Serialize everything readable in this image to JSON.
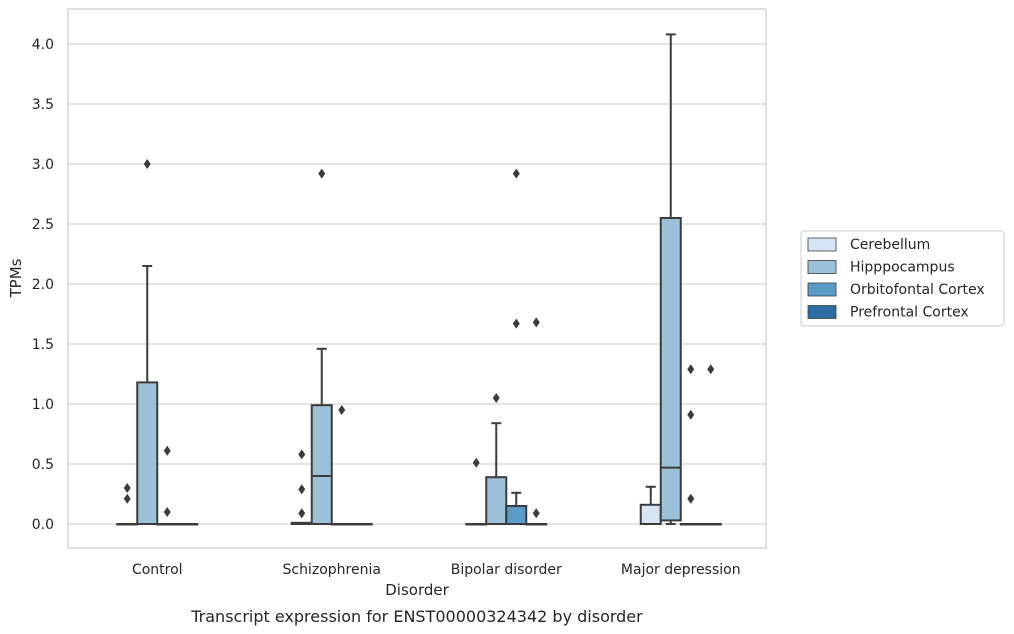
{
  "chart_data": {
    "type": "box",
    "caption": "Transcript expression for ENST00000324342 by disorder",
    "xlabel": "Disorder",
    "ylabel": "TPMs",
    "ylim": [
      -0.2,
      4.28
    ],
    "yticks": [
      "0.0",
      "0.5",
      "1.0",
      "1.5",
      "2.0",
      "2.5",
      "3.0",
      "3.5",
      "4.0"
    ],
    "grid": "horizontal",
    "legend_position": "right",
    "categories": [
      "Control",
      "Schizophrenia",
      "Bipolar disorder",
      "Major depression"
    ],
    "series": [
      {
        "name": "Cerebellum",
        "color": "#d6e5f4",
        "boxes": [
          {
            "q1": 0,
            "median": 0,
            "q3": 0,
            "whisker_low": 0,
            "whisker_high": 0,
            "outliers": [
              0.21,
              0.3
            ]
          },
          {
            "q1": 0,
            "median": 0,
            "q3": 0.01,
            "whisker_low": 0,
            "whisker_high": 0.01,
            "outliers": [
              0.09,
              0.29,
              0.58
            ]
          },
          {
            "q1": 0,
            "median": 0,
            "q3": 0,
            "whisker_low": 0,
            "whisker_high": 0,
            "outliers": [
              0.51
            ]
          },
          {
            "q1": 0,
            "median": 0,
            "q3": 0.16,
            "whisker_low": 0,
            "whisker_high": 0.31,
            "outliers": []
          }
        ]
      },
      {
        "name": "Hipppocampus",
        "color": "#9bc2d9",
        "boxes": [
          {
            "q1": 0,
            "median": 0,
            "q3": 1.18,
            "whisker_low": 0,
            "whisker_high": 2.15,
            "outliers": [
              3.0
            ]
          },
          {
            "q1": 0,
            "median": 0.4,
            "q3": 0.99,
            "whisker_low": 0,
            "whisker_high": 1.46,
            "outliers": [
              2.92
            ]
          },
          {
            "q1": 0,
            "median": 0,
            "q3": 0.39,
            "whisker_low": 0,
            "whisker_high": 0.84,
            "outliers": [
              1.05
            ]
          },
          {
            "q1": 0.03,
            "median": 0.47,
            "q3": 2.55,
            "whisker_low": 0,
            "whisker_high": 4.08,
            "outliers": []
          }
        ]
      },
      {
        "name": "Orbitofontal Cortex",
        "color": "#5b9bc7",
        "boxes": [
          {
            "q1": 0,
            "median": 0,
            "q3": 0,
            "whisker_low": 0,
            "whisker_high": 0,
            "outliers": [
              0.61,
              0.1
            ]
          },
          {
            "q1": 0,
            "median": 0,
            "q3": 0,
            "whisker_low": 0,
            "whisker_high": 0,
            "outliers": [
              0.95
            ]
          },
          {
            "q1": 0,
            "median": 0,
            "q3": 0.15,
            "whisker_low": 0,
            "whisker_high": 0.26,
            "outliers": [
              1.67,
              2.92
            ]
          },
          {
            "q1": 0,
            "median": 0,
            "q3": 0,
            "whisker_low": 0,
            "whisker_high": 0,
            "outliers": [
              1.29,
              0.91,
              0.21
            ]
          }
        ]
      },
      {
        "name": "Prefrontal Cortex",
        "color": "#2f6ea5",
        "boxes": [
          {
            "q1": 0,
            "median": 0,
            "q3": 0,
            "whisker_low": 0,
            "whisker_high": 0,
            "outliers": []
          },
          {
            "q1": 0,
            "median": 0,
            "q3": 0,
            "whisker_low": 0,
            "whisker_high": 0,
            "outliers": []
          },
          {
            "q1": 0,
            "median": 0,
            "q3": 0,
            "whisker_low": 0,
            "whisker_high": 0,
            "outliers": [
              1.68,
              0.09
            ]
          },
          {
            "q1": 0,
            "median": 0,
            "q3": 0,
            "whisker_low": 0,
            "whisker_high": 0,
            "outliers": [
              1.29
            ]
          }
        ]
      }
    ]
  }
}
